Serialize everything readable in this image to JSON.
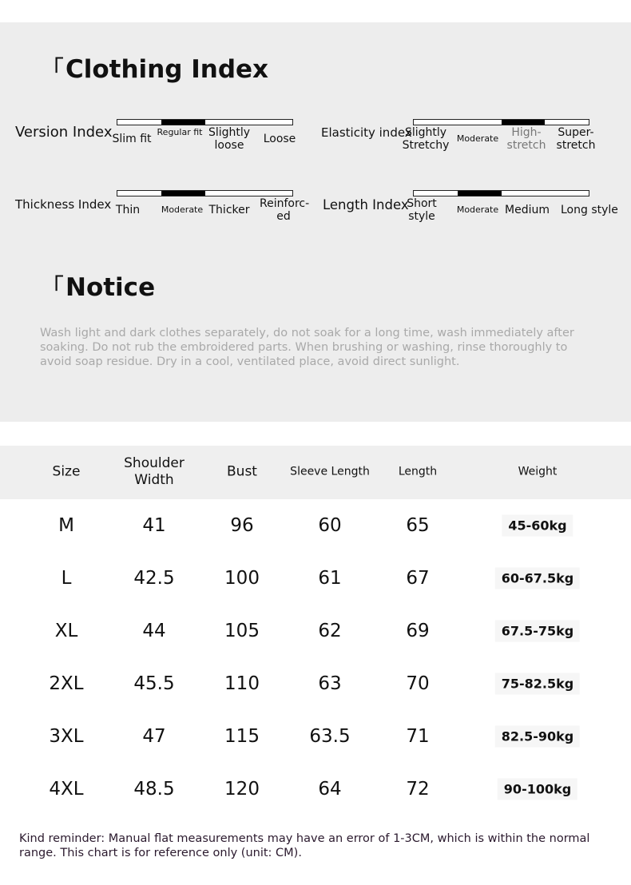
{
  "clothing_index": {
    "title": "Clothing Index",
    "bracket": "「",
    "indices": [
      {
        "label": "Version Index",
        "options": [
          "Slim fit",
          "Regular fit",
          "Slightly loose",
          "Loose"
        ],
        "selected": 1
      },
      {
        "label": "Elasticity index",
        "options": [
          "Slightly Stretchy",
          "Moderate",
          "High-stretch",
          "Super-stretch"
        ],
        "selected": 2
      },
      {
        "label": "Thickness Index",
        "options": [
          "Thin",
          "Moderate",
          "Thicker",
          "Reinforc-ed"
        ],
        "selected": 1
      },
      {
        "label": "Length Index",
        "options": [
          "Short style",
          "Moderate",
          "Medium",
          "Long style"
        ],
        "selected": 1
      }
    ]
  },
  "notice": {
    "title": "Notice",
    "bracket": "「",
    "text": "Wash light and dark clothes separately, do not soak for a long time, wash immediately after soaking. Do not rub the embroidered parts. When brushing or washing, rinse thoroughly to avoid soap residue. Dry in a cool, ventilated place, avoid direct sunlight."
  },
  "size_table": {
    "headers": [
      "Size",
      "Shoulder Width",
      "Bust",
      "Sleeve Length",
      "Length",
      "Weight"
    ],
    "rows": [
      [
        "M",
        "41",
        "96",
        "60",
        "65",
        "45-60kg"
      ],
      [
        "L",
        "42.5",
        "100",
        "61",
        "67",
        "60-67.5kg"
      ],
      [
        "XL",
        "44",
        "105",
        "62",
        "69",
        "67.5-75kg"
      ],
      [
        "2XL",
        "45.5",
        "110",
        "63",
        "70",
        "75-82.5kg"
      ],
      [
        "3XL",
        "47",
        "115",
        "63.5",
        "71",
        "82.5-90kg"
      ],
      [
        "4XL",
        "48.5",
        "120",
        "64",
        "72",
        "90-100kg"
      ]
    ]
  },
  "footer": "Kind reminder: Manual flat measurements may have an error of 1-3CM, which is within the normal range. This chart is for reference only (unit: CM)."
}
